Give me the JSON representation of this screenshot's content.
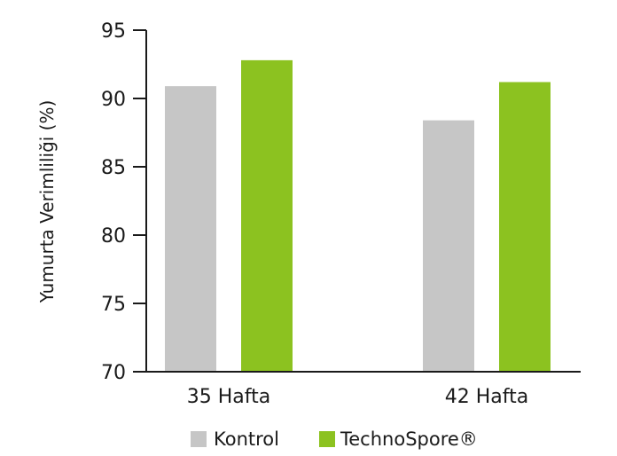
{
  "chart_data": {
    "type": "bar",
    "categories": [
      "35 Hafta",
      "42 Hafta"
    ],
    "series": [
      {
        "name": "Kontrol",
        "values": [
          90.9,
          88.4
        ],
        "color": "#c6c6c6"
      },
      {
        "name": "TechnoSpore®",
        "values": [
          92.8,
          91.2
        ],
        "color": "#8cc220"
      }
    ],
    "title": "",
    "xlabel": "",
    "ylabel": "Yumurta Verimliliği (%)",
    "ylim": [
      70,
      95
    ],
    "yticks": [
      70,
      75,
      80,
      85,
      90,
      95
    ],
    "grid": false,
    "legend_position": "bottom-center",
    "axis_color": "#1a1a1a"
  }
}
